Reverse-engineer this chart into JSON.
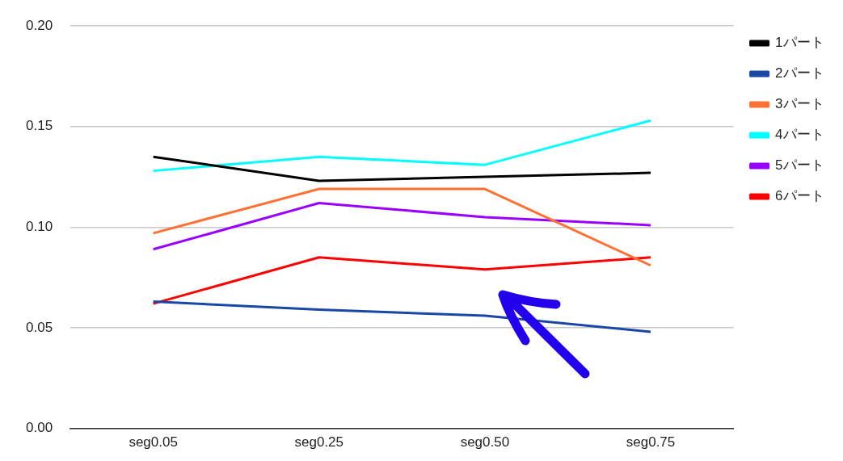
{
  "chart_data": {
    "type": "line",
    "categories": [
      "seg0.05",
      "seg0.25",
      "seg0.50",
      "seg0.75"
    ],
    "series": [
      {
        "name": "1パート",
        "color": "#000000",
        "values": [
          0.135,
          0.123,
          0.125,
          0.127
        ]
      },
      {
        "name": "2パート",
        "color": "#1a47a6",
        "values": [
          0.063,
          0.059,
          0.056,
          0.048
        ]
      },
      {
        "name": "3パート",
        "color": "#ff7033",
        "values": [
          0.097,
          0.119,
          0.119,
          0.081
        ]
      },
      {
        "name": "4パート",
        "color": "#00ffff",
        "values": [
          0.128,
          0.135,
          0.131,
          0.153
        ]
      },
      {
        "name": "5パート",
        "color": "#9900ff",
        "values": [
          0.089,
          0.112,
          0.105,
          0.101
        ]
      },
      {
        "name": "6パート",
        "color": "#ff0000",
        "values": [
          0.062,
          0.085,
          0.079,
          0.085
        ]
      }
    ],
    "ylim": [
      0,
      0.2
    ],
    "yticks": [
      {
        "value": 0,
        "label": "0.00"
      },
      {
        "value": 0.05,
        "label": "0.05"
      },
      {
        "value": 0.1,
        "label": "0.10"
      },
      {
        "value": 0.15,
        "label": "0.15"
      },
      {
        "value": 0.2,
        "label": "0.20"
      }
    ],
    "grid": "y",
    "legend": "top right",
    "marker": "none",
    "line_style": "solid"
  }
}
